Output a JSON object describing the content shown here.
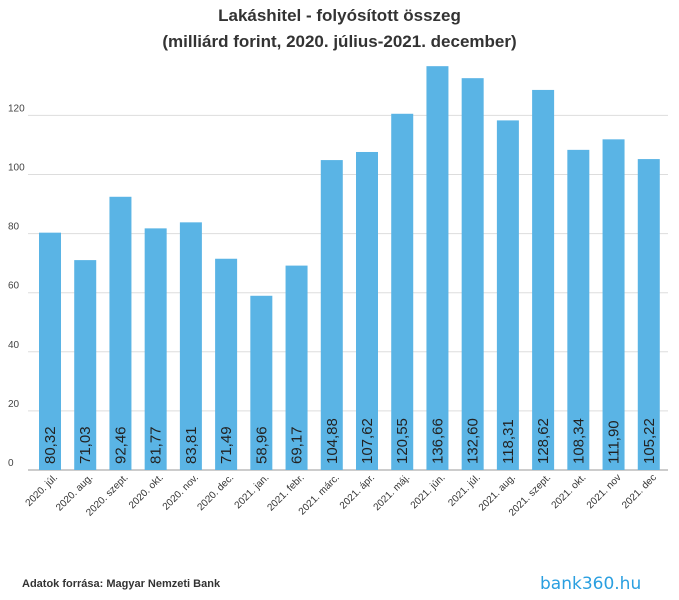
{
  "chart_data": {
    "type": "bar",
    "title": "Lakáshitel - folyósított összeg",
    "subtitle": "(milliárd forint, 2020. július-2021. december)",
    "categories": [
      "2020. júl.",
      "2020. aug.",
      "2020. szept.",
      "2020. okt.",
      "2020. nov.",
      "2020. dec.",
      "2021. jan.",
      "2021. febr.",
      "2021. márc.",
      "2021. ápr.",
      "2021. máj.",
      "2021. jún.",
      "2021. júl.",
      "2021. aug.",
      "2021. szept.",
      "2021. okt.",
      "2021. nov",
      "2021. dec"
    ],
    "values": [
      80.32,
      71.03,
      92.46,
      81.77,
      83.81,
      71.49,
      58.96,
      69.17,
      104.88,
      107.62,
      120.55,
      136.66,
      132.6,
      118.31,
      128.62,
      108.34,
      111.9,
      105.22
    ],
    "value_labels": [
      "80,32",
      "71,03",
      "92,46",
      "81,77",
      "83,81",
      "71,49",
      "58,96",
      "69,17",
      "104,88",
      "107,62",
      "120,55",
      "136,66",
      "132,60",
      "118,31",
      "128,62",
      "108,34",
      "111,90",
      "105,22"
    ],
    "yticks": [
      0,
      20,
      40,
      60,
      80,
      100,
      120
    ],
    "ylim": [
      0,
      130
    ],
    "bar_color": "#5ab4e5",
    "grid": true
  },
  "footer": {
    "source": "Adatok forrása: Magyar Nemzeti Bank",
    "brand": "bank360.hu"
  }
}
